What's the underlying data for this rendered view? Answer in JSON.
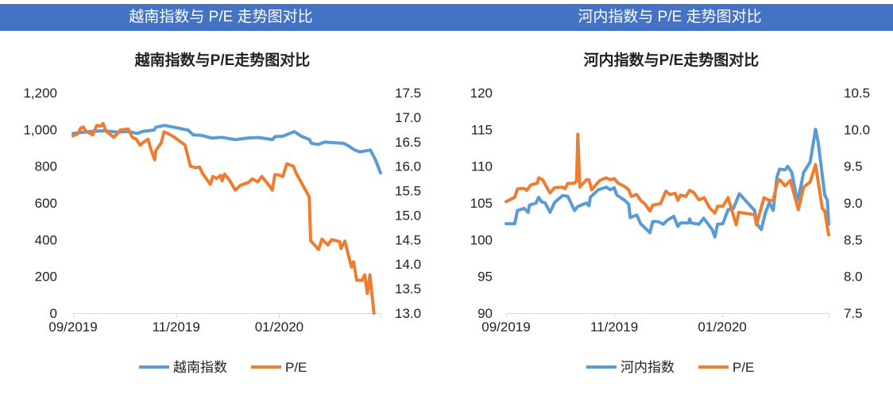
{
  "banner": {
    "left_title": "越南指数与 P/E 走势图对比",
    "right_title": "河内指数与 P/E 走势图对比",
    "color": "#4472C4"
  },
  "chart_data": [
    {
      "type": "line",
      "title": "越南指数与P/E走势图对比",
      "x_unit": "days since 2019-09-01",
      "xlim": [
        0,
        182
      ],
      "x_ticks": [
        {
          "value": 0,
          "label": "09/2019"
        },
        {
          "value": 61,
          "label": "11/2019"
        },
        {
          "value": 122,
          "label": "01/2020"
        }
      ],
      "y_left": {
        "lim": [
          0,
          1200
        ],
        "ticks": [
          0,
          200,
          400,
          600,
          800,
          1000,
          1200
        ],
        "labels": [
          "0",
          "200",
          "400",
          "600",
          "800",
          "1,000",
          "1,200"
        ]
      },
      "y_right": {
        "lim": [
          13.0,
          17.5
        ],
        "ticks": [
          13.0,
          13.5,
          14.0,
          14.5,
          15.0,
          15.5,
          16.0,
          16.5,
          17.0,
          17.5
        ],
        "labels": [
          "13.0",
          "13.5",
          "14.0",
          "14.5",
          "15.0",
          "15.5",
          "16.0",
          "16.5",
          "17.0",
          "17.5"
        ]
      },
      "legend_position": "bottom",
      "series": [
        {
          "name": "越南指数",
          "axis": "left",
          "color": "#5B9BD5",
          "x": [
            0,
            10,
            18,
            26,
            33,
            38,
            41,
            48,
            49,
            54,
            60,
            66,
            68,
            71,
            76,
            82,
            88,
            96,
            104,
            110,
            118,
            119.5,
            124,
            127,
            131,
            135,
            140,
            141,
            145,
            149,
            154,
            160,
            163,
            166,
            169.5,
            176,
            179,
            182
          ],
          "y": [
            978,
            989,
            993,
            986,
            989,
            978,
            989,
            997,
            1012,
            1022,
            1012,
            1000,
            997,
            971,
            968,
            953,
            957,
            945,
            954,
            956,
            945,
            961,
            963,
            974,
            988,
            964,
            945,
            925,
            918,
            931,
            928,
            925,
            911,
            892,
            878,
            888,
            835,
            763
          ]
        },
        {
          "name": "P/E",
          "axis": "right",
          "color": "#ED7D31",
          "x": [
            0,
            3,
            4.5,
            6,
            7.7,
            11.6,
            13.9,
            16.3,
            17.8,
            19.4,
            24.1,
            26.4,
            28,
            32.7,
            35,
            37.4,
            39.7,
            41.3,
            44.4,
            46,
            48.3,
            49,
            52.2,
            53.8,
            56.1,
            60,
            62.4,
            66.3,
            69.4,
            72.5,
            74.9,
            76.5,
            81.2,
            82.7,
            85,
            87.4,
            88.2,
            89.7,
            92.9,
            96,
            99.1,
            103.8,
            106.2,
            109.3,
            111.7,
            116.4,
            117.9,
            119.5,
            121.8,
            124.2,
            126.5,
            130.4,
            132,
            139.8,
            140.6,
            145.3,
            147.3,
            150.8,
            153.1,
            157.8,
            158.6,
            160.9,
            164.8,
            166,
            167.9,
            171.1,
            172.6,
            174.2,
            175.7,
            178.1
          ],
          "y": [
            16.62,
            16.67,
            16.78,
            16.8,
            16.71,
            16.64,
            16.83,
            16.82,
            16.87,
            16.72,
            16.59,
            16.67,
            16.74,
            16.76,
            16.59,
            16.55,
            16.43,
            16.48,
            16.55,
            16.35,
            16.13,
            16.32,
            16.48,
            16.7,
            16.67,
            16.59,
            16.53,
            16.43,
            16.0,
            15.97,
            15.98,
            15.86,
            15.63,
            15.79,
            15.75,
            15.81,
            15.7,
            15.84,
            15.7,
            15.51,
            15.61,
            15.67,
            15.74,
            15.68,
            15.79,
            15.59,
            15.51,
            15.83,
            15.82,
            15.79,
            16.05,
            16.0,
            15.86,
            15.37,
            14.48,
            14.3,
            14.51,
            14.39,
            14.5,
            14.46,
            14.32,
            14.47,
            13.94,
            14.05,
            13.67,
            13.67,
            13.78,
            13.4,
            13.78,
            13.0
          ]
        }
      ]
    },
    {
      "type": "line",
      "title": "河内指数与P/E走势图对比",
      "x_unit": "days since 2019-09-01",
      "xlim": [
        0,
        182
      ],
      "x_ticks": [
        {
          "value": 0,
          "label": "09/2019"
        },
        {
          "value": 61,
          "label": "11/2019"
        },
        {
          "value": 122,
          "label": "01/2020"
        }
      ],
      "y_left": {
        "lim": [
          90,
          120
        ],
        "ticks": [
          90,
          95,
          100,
          105,
          110,
          115,
          120
        ],
        "labels": [
          "90",
          "95",
          "100",
          "105",
          "110",
          "115",
          "120"
        ]
      },
      "y_right": {
        "lim": [
          7.5,
          10.5
        ],
        "ticks": [
          7.5,
          8.0,
          8.5,
          9.0,
          9.5,
          10.0,
          10.5
        ],
        "labels": [
          "7.5",
          "8.0",
          "8.5",
          "9.0",
          "9.5",
          "10.0",
          "10.5"
        ]
      },
      "legend_position": "bottom",
      "series": [
        {
          "name": "河内指数",
          "axis": "left",
          "color": "#5B9BD5",
          "x": [
            0,
            4.9,
            6.4,
            10.2,
            12.4,
            13.2,
            16.9,
            18.4,
            19.9,
            22.1,
            24.8,
            27.4,
            31.8,
            34.8,
            38.6,
            40.1,
            41.6,
            45.3,
            46.8,
            47.5,
            52,
            56.5,
            58.8,
            61,
            62.5,
            67,
            69.2,
            70,
            73.7,
            75.9,
            81.2,
            82.7,
            85.7,
            88.7,
            90.9,
            94.6,
            96.9,
            98.4,
            102.9,
            103.6,
            104.3,
            108.8,
            111.5,
            116.3,
            117.8,
            119.3,
            122.3,
            123.8,
            125.3,
            128.3,
            131.6,
            140.2,
            141.7,
            144,
            146.2,
            148.5,
            150.7,
            152.9,
            154.4,
            157.4,
            158.9,
            161.2,
            164.2,
            165.6,
            167.9,
            171.6,
            174.6,
            176.1,
            179.8,
            181.3,
            182
          ],
          "y": [
            102.17,
            102.17,
            103.97,
            104.26,
            103.72,
            104.7,
            104.99,
            105.78,
            105.17,
            104.99,
            103.72,
            105.06,
            106.0,
            105.92,
            103.97,
            104.44,
            104.62,
            104.99,
            104.62,
            105.78,
            106.79,
            107.15,
            106.79,
            107.08,
            106.07,
            105.35,
            104.8,
            103.0,
            103.36,
            102.17,
            100.94,
            102.46,
            102.46,
            102.1,
            102.64,
            103.18,
            101.81,
            102.28,
            102.28,
            102.82,
            102.28,
            102.1,
            102.93,
            101.37,
            100.36,
            102.1,
            102.17,
            103.18,
            104.08,
            104.26,
            106.25,
            103.97,
            102.1,
            101.37,
            103.54,
            105.06,
            103.97,
            108.6,
            109.61,
            109.5,
            109.97,
            109.14,
            105.35,
            106.43,
            109.14,
            110.58,
            115.02,
            113.29,
            106.07,
            105.35,
            102.1
          ]
        },
        {
          "name": "P/E",
          "axis": "right",
          "color": "#ED7D31",
          "x": [
            0,
            4.9,
            6.4,
            10.2,
            11.7,
            13.9,
            17.6,
            18.4,
            20.6,
            22.9,
            24.8,
            27.4,
            31.8,
            33.3,
            34.8,
            38.6,
            39.8,
            40.5,
            41.6,
            45.3,
            46.8,
            48.3,
            52.8,
            56.5,
            58.8,
            61,
            63.2,
            67,
            69.2,
            70.7,
            73.7,
            75.9,
            78.2,
            81.2,
            82.7,
            87.2,
            90.1,
            92.4,
            95.4,
            96.9,
            98.4,
            101.4,
            103.6,
            105.8,
            108.8,
            111.8,
            114.8,
            117.8,
            119.3,
            122.3,
            125.3,
            127.5,
            129.8,
            131.3,
            140.2,
            141.3,
            145.5,
            148.5,
            150.7,
            152.9,
            154.4,
            157.4,
            160.4,
            164.9,
            167.9,
            171.6,
            174.6,
            178.4,
            179.8,
            182
          ],
          "y": [
            9.017,
            9.078,
            9.19,
            9.197,
            9.172,
            9.244,
            9.269,
            9.341,
            9.316,
            9.215,
            9.136,
            9.208,
            9.215,
            9.193,
            9.266,
            9.269,
            9.305,
            9.937,
            9.215,
            9.316,
            9.316,
            9.179,
            9.305,
            9.341,
            9.316,
            9.331,
            9.269,
            9.222,
            9.179,
            9.089,
            9.114,
            9.035,
            8.991,
            8.89,
            8.97,
            8.991,
            9.161,
            9.114,
            9.132,
            9.035,
            9.107,
            9.089,
            9.172,
            9.143,
            9.042,
            9.071,
            8.934,
            8.861,
            8.955,
            8.955,
            9.071,
            8.89,
            8.702,
            8.872,
            8.84,
            8.702,
            9.071,
            9.035,
            9.035,
            9.269,
            9.316,
            9.233,
            9.305,
            8.908,
            9.215,
            9.287,
            9.522,
            8.926,
            8.89,
            8.565
          ]
        }
      ]
    }
  ]
}
